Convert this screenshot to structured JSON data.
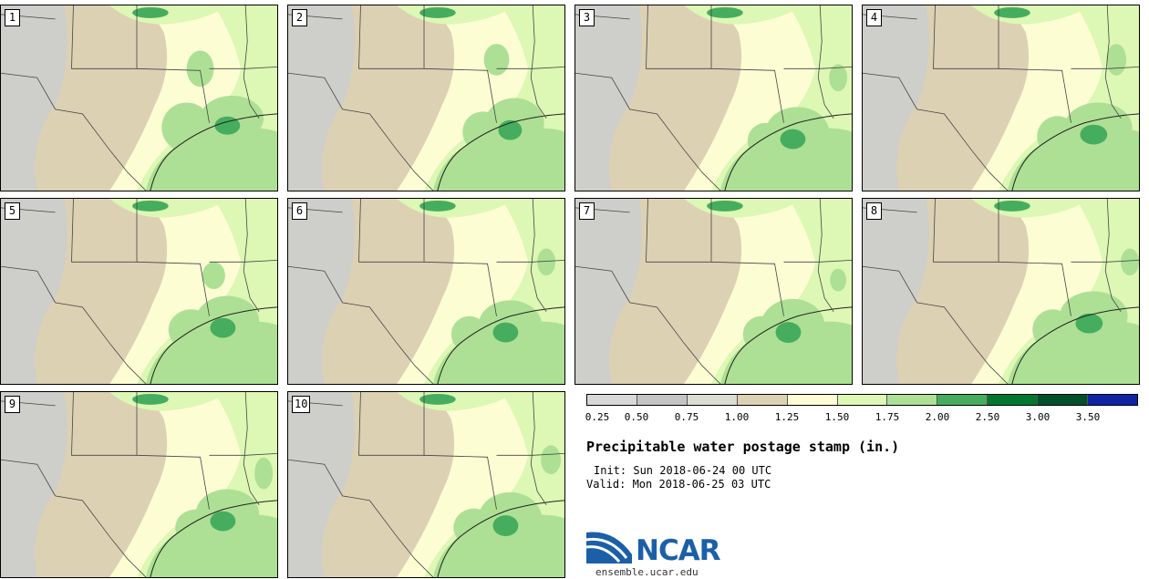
{
  "panels": [
    {
      "label": "1",
      "blobs": [
        [
          255,
          125,
          70,
          50
        ],
        [
          205,
          135,
          55,
          55
        ],
        [
          220,
          70,
          30,
          40
        ]
      ]
    },
    {
      "label": "2",
      "blobs": [
        [
          250,
          130,
          65,
          55
        ],
        [
          215,
          140,
          45,
          45
        ],
        [
          230,
          60,
          28,
          35
        ]
      ]
    },
    {
      "label": "3",
      "blobs": [
        [
          245,
          140,
          70,
          55
        ],
        [
          210,
          150,
          40,
          40
        ],
        [
          290,
          80,
          20,
          30
        ]
      ]
    },
    {
      "label": "4",
      "blobs": [
        [
          260,
          135,
          75,
          55
        ],
        [
          215,
          145,
          45,
          45
        ],
        [
          280,
          60,
          22,
          35
        ]
      ]
    },
    {
      "label": "5",
      "blobs": [
        [
          250,
          135,
          70,
          55
        ],
        [
          210,
          145,
          50,
          45
        ],
        [
          235,
          85,
          25,
          30
        ]
      ]
    },
    {
      "label": "6",
      "blobs": [
        [
          245,
          140,
          70,
          55
        ],
        [
          200,
          150,
          40,
          40
        ],
        [
          285,
          70,
          20,
          30
        ]
      ]
    },
    {
      "label": "7",
      "blobs": [
        [
          240,
          140,
          70,
          58
        ],
        [
          205,
          150,
          40,
          40
        ],
        [
          290,
          90,
          18,
          25
        ]
      ]
    },
    {
      "label": "8",
      "blobs": [
        [
          255,
          130,
          75,
          55
        ],
        [
          210,
          145,
          45,
          45
        ],
        [
          295,
          70,
          20,
          30
        ]
      ]
    },
    {
      "label": "9",
      "blobs": [
        [
          250,
          135,
          70,
          55
        ],
        [
          215,
          150,
          45,
          40
        ],
        [
          290,
          90,
          20,
          35
        ]
      ]
    },
    {
      "label": "10",
      "blobs": [
        [
          245,
          140,
          70,
          58
        ],
        [
          205,
          150,
          45,
          42
        ],
        [
          290,
          75,
          22,
          32
        ]
      ]
    }
  ],
  "colorbar": {
    "colors": [
      "#d8d8d8",
      "#c4c4c4",
      "#dcdcd2",
      "#ddd1b4",
      "#fdfdd4",
      "#ddf7b4",
      "#ade094",
      "#46ad5e",
      "#01782f",
      "#00502a",
      "#0f23a5"
    ],
    "ticks": [
      "0.25",
      "0.50",
      "0.75",
      "1.00",
      "1.25",
      "1.50",
      "1.75",
      "2.00",
      "2.50",
      "3.00",
      "3.50"
    ]
  },
  "title": "Precipitable water postage stamp (in.)",
  "init": "Init: Sun 2018-06-24 00 UTC",
  "valid": "Valid: Mon 2018-06-25 03 UTC",
  "logo": {
    "text": "NCAR",
    "url": "ensemble.ucar.edu"
  }
}
